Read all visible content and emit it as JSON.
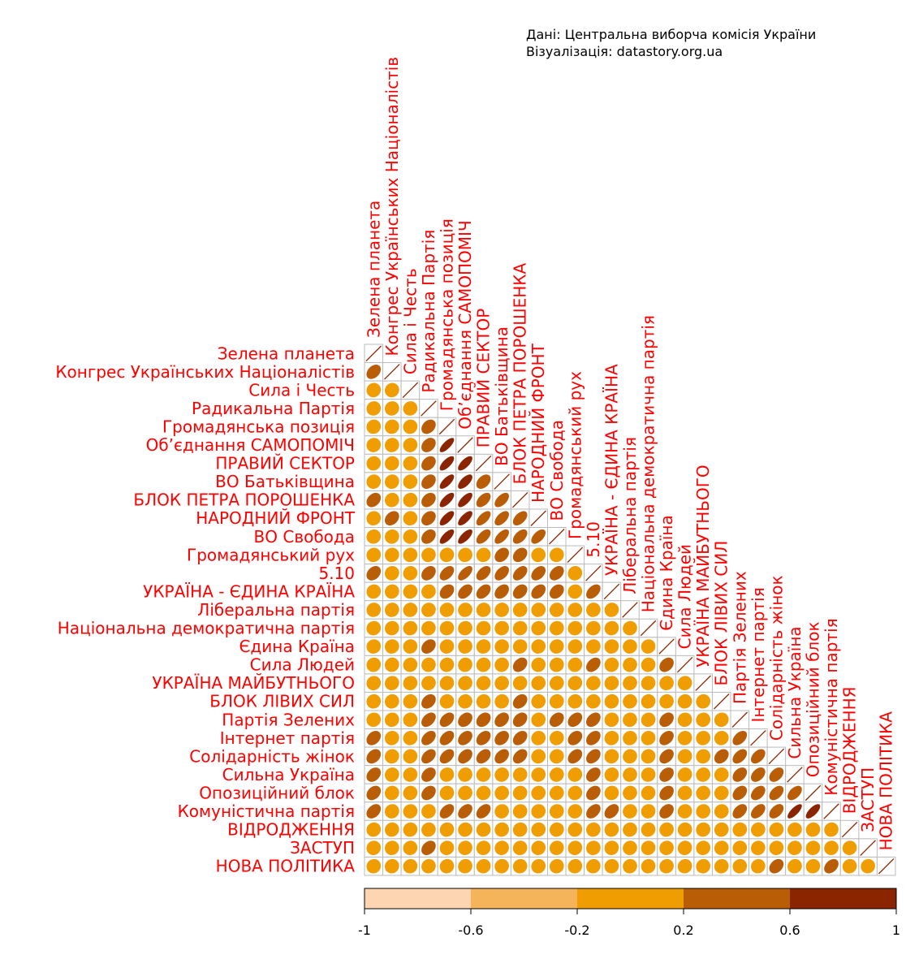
{
  "source": {
    "line1": "Дані: Центральна виборча комісія України",
    "line2": "Візуалізація: datastory.org.ua"
  },
  "colors": {
    "label_text": "#ff0000",
    "grid": "#bbbbbb",
    "diagonal_line": "#8b2500",
    "bins": [
      "#fdd6b1",
      "#f5b45a",
      "#ef9d00",
      "#b95d06",
      "#8b2500"
    ]
  },
  "chart_data": {
    "type": "heatmap",
    "subtype": "correlation-ellipse-lower-triangle",
    "title": "",
    "variables": [
      "Зелена планета",
      "Конгрес Українських Націоналістів",
      "Сила і Честь",
      "Радикальна Партія",
      "Громадянська позиція",
      "Об’єднання САМОПОМІЧ",
      "ПРАВИЙ СЕКТОР",
      "ВО Батьківщина",
      "БЛОК ПЕТРА ПОРОШЕНКА",
      "НАРОДНИЙ ФРОНТ",
      "ВО Свобода",
      "Громадянський рух",
      "5.10",
      "УКРАЇНА - ЄДИНА КРАЇНА",
      "Ліберальна партія",
      "Національна демократична партія",
      "Єдина Країна",
      "Сила Людей",
      "УКРАЇНА МАЙБУТНЬОГО",
      "БЛОК ЛІВИХ СИЛ",
      "Партія Зелених",
      "Інтернет партія",
      "Солідарність жінок",
      "Сильна Україна",
      "Опозиційний блок",
      "Комуністична партія",
      "ВІДРОДЖЕННЯ",
      "ЗАСТУП",
      "НОВА ПОЛІТИКА"
    ],
    "matrix": [
      [
        1.0
      ],
      [
        0.35,
        1.0
      ],
      [
        0.05,
        0.05,
        1.0
      ],
      [
        0.05,
        0.05,
        0.05,
        1.0
      ],
      [
        0.05,
        0.05,
        0.05,
        0.3,
        1.0
      ],
      [
        0.05,
        0.05,
        0.05,
        0.3,
        0.75,
        1.0
      ],
      [
        0.05,
        0.05,
        0.05,
        0.3,
        0.7,
        0.7,
        1.0
      ],
      [
        0.05,
        0.05,
        0.05,
        0.3,
        0.7,
        0.65,
        0.4,
        1.0
      ],
      [
        0.3,
        0.05,
        0.05,
        0.3,
        0.7,
        0.7,
        0.5,
        0.55,
        1.0
      ],
      [
        0.05,
        0.3,
        0.05,
        0.3,
        0.7,
        0.7,
        0.6,
        0.55,
        0.5,
        1.0
      ],
      [
        0.05,
        0.05,
        0.05,
        0.3,
        0.7,
        0.7,
        0.55,
        0.6,
        0.5,
        0.55,
        1.0
      ],
      [
        0.05,
        0.05,
        0.05,
        0.05,
        0.05,
        0.05,
        0.05,
        0.3,
        0.3,
        0.05,
        0.05,
        1.0
      ],
      [
        0.3,
        0.05,
        0.05,
        0.3,
        0.45,
        0.6,
        0.45,
        0.45,
        0.45,
        0.4,
        0.35,
        0.05,
        1.0
      ],
      [
        0.05,
        0.05,
        0.05,
        0.05,
        0.3,
        0.4,
        0.4,
        0.35,
        0.3,
        0.35,
        0.3,
        0.05,
        0.45,
        1.0
      ],
      [
        0.05,
        0.05,
        0.05,
        0.05,
        0.05,
        0.05,
        0.05,
        0.05,
        0.05,
        0.05,
        0.05,
        0.05,
        0.05,
        0.05,
        1.0
      ],
      [
        0.05,
        0.05,
        0.05,
        0.05,
        0.05,
        0.05,
        0.05,
        0.05,
        0.05,
        0.05,
        0.05,
        0.05,
        0.05,
        0.05,
        0.05,
        1.0
      ],
      [
        0.05,
        0.05,
        0.05,
        0.3,
        0.05,
        0.05,
        0.05,
        0.05,
        0.05,
        0.05,
        0.05,
        0.05,
        0.05,
        0.05,
        0.05,
        0.05,
        1.0
      ],
      [
        0.05,
        0.05,
        0.05,
        0.05,
        0.05,
        0.05,
        0.05,
        0.05,
        0.3,
        0.05,
        0.05,
        0.05,
        0.35,
        0.05,
        0.05,
        0.05,
        0.3,
        1.0
      ],
      [
        0.05,
        0.05,
        0.05,
        0.05,
        0.05,
        0.05,
        0.05,
        0.05,
        0.05,
        0.05,
        0.05,
        0.05,
        0.05,
        0.05,
        0.05,
        0.05,
        0.05,
        0.05,
        1.0
      ],
      [
        0.05,
        0.05,
        0.05,
        0.3,
        0.05,
        0.05,
        0.05,
        0.05,
        0.3,
        0.05,
        0.05,
        0.05,
        0.05,
        0.05,
        0.05,
        0.05,
        0.05,
        0.05,
        0.05,
        1.0
      ],
      [
        0.05,
        0.05,
        0.05,
        0.4,
        0.4,
        0.3,
        0.3,
        0.3,
        0.3,
        0.05,
        0.3,
        0.35,
        0.35,
        0.05,
        0.05,
        0.05,
        0.3,
        0.05,
        0.05,
        0.05,
        1.0
      ],
      [
        0.3,
        0.05,
        0.05,
        0.4,
        0.4,
        0.35,
        0.35,
        0.3,
        0.35,
        0.05,
        0.05,
        0.3,
        0.35,
        0.05,
        0.05,
        0.05,
        0.35,
        0.05,
        0.05,
        0.05,
        0.45,
        1.0
      ],
      [
        0.3,
        0.05,
        0.05,
        0.4,
        0.4,
        0.35,
        0.35,
        0.35,
        0.35,
        0.05,
        0.05,
        0.35,
        0.35,
        0.05,
        0.05,
        0.05,
        0.35,
        0.05,
        0.05,
        0.3,
        0.45,
        0.45,
        1.0
      ],
      [
        0.3,
        0.05,
        0.05,
        0.3,
        0.05,
        0.05,
        0.05,
        0.05,
        0.05,
        0.05,
        0.05,
        0.05,
        0.3,
        0.05,
        0.05,
        0.05,
        0.3,
        0.05,
        0.05,
        0.05,
        0.35,
        0.4,
        0.4,
        1.0
      ],
      [
        0.3,
        0.05,
        0.05,
        0.3,
        0.05,
        0.05,
        0.05,
        0.05,
        0.05,
        0.05,
        0.05,
        0.05,
        0.3,
        0.05,
        0.05,
        0.05,
        0.3,
        0.05,
        0.05,
        0.05,
        0.35,
        0.4,
        0.45,
        0.5,
        1.0
      ],
      [
        0.35,
        0.05,
        0.05,
        0.05,
        0.4,
        0.4,
        0.4,
        0.05,
        0.05,
        0.05,
        0.05,
        0.05,
        0.4,
        0.35,
        0.05,
        0.05,
        0.3,
        0.05,
        0.05,
        0.05,
        0.4,
        0.45,
        0.45,
        0.75,
        0.7,
        1.0
      ],
      [
        0.05,
        0.05,
        0.05,
        0.05,
        0.05,
        0.05,
        0.05,
        0.05,
        0.05,
        0.05,
        0.05,
        0.05,
        0.05,
        0.05,
        0.05,
        0.05,
        0.05,
        0.05,
        0.05,
        0.05,
        0.05,
        0.05,
        0.05,
        0.05,
        0.05,
        0.05,
        1.0
      ],
      [
        0.05,
        0.05,
        0.05,
        0.3,
        0.05,
        0.05,
        0.05,
        0.05,
        0.05,
        0.05,
        0.05,
        0.05,
        0.05,
        0.05,
        0.05,
        0.05,
        0.05,
        0.05,
        0.05,
        0.05,
        0.05,
        0.05,
        0.05,
        0.05,
        0.05,
        0.05,
        0.05,
        1.0
      ],
      [
        0.05,
        0.05,
        0.05,
        0.05,
        0.05,
        0.05,
        0.05,
        0.05,
        0.05,
        0.05,
        0.05,
        0.05,
        0.05,
        0.05,
        0.05,
        0.05,
        0.05,
        0.05,
        0.05,
        0.05,
        0.05,
        0.05,
        0.3,
        0.05,
        0.05,
        0.35,
        0.05,
        0.05,
        1.0
      ]
    ],
    "colorbar": {
      "range": [
        -1,
        1
      ],
      "breaks": [
        -1,
        -0.6,
        -0.2,
        0.2,
        0.6,
        1
      ],
      "tick_labels": [
        "-1",
        "-0.6",
        "-0.2",
        "0.2",
        "0.6",
        "1"
      ]
    },
    "grid": true,
    "legend_position": "bottom"
  }
}
